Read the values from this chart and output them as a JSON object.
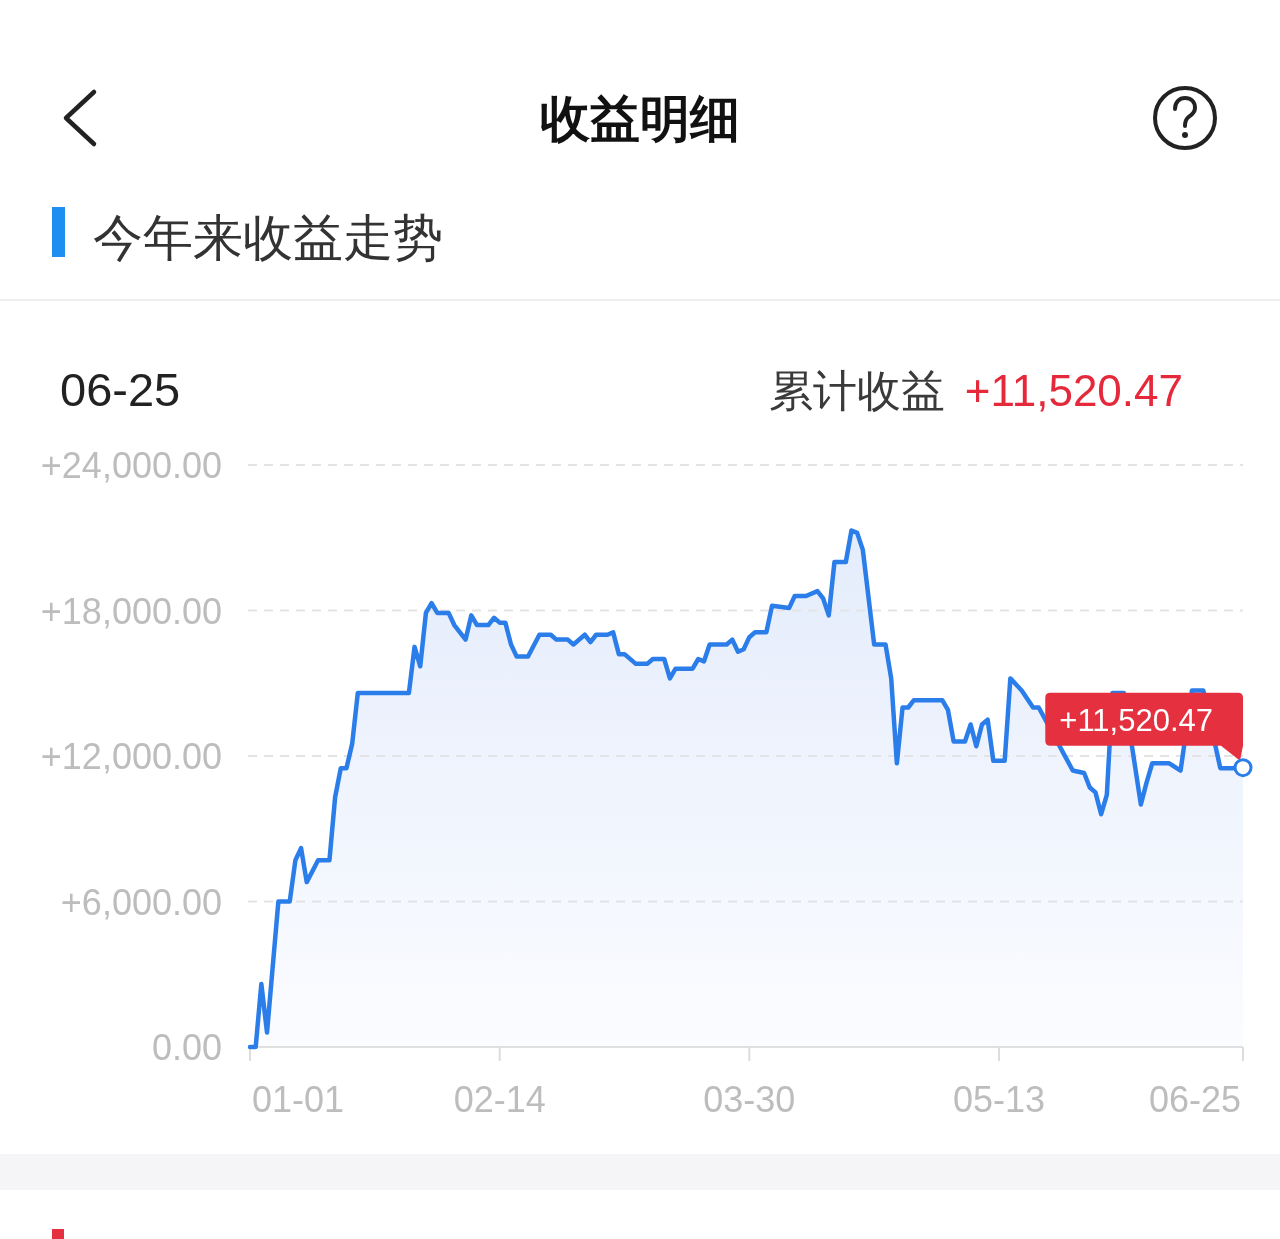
{
  "chart_data": {
    "type": "area",
    "title": "收益明细",
    "subtitle": "今年来收益走势",
    "annotations": [
      "06-25",
      "累计收益",
      "+11,520.47",
      {
        "text": "+11,520.47",
        "x": "--06-25",
        "y": 11520.47
      }
    ],
    "x": [
      "--01-01",
      "--01-02",
      "--01-03",
      "--01-04",
      "--01-06",
      "--01-08",
      "--01-09",
      "--01-10",
      "--01-11",
      "--01-13",
      "--01-15",
      "--01-16",
      "--01-17",
      "--01-18",
      "--01-19",
      "--01-20",
      "--01-29",
      "--01-30",
      "--01-31",
      "--02-01",
      "--02-02",
      "--02-03",
      "--02-05",
      "--02-06",
      "--02-07",
      "--02-08",
      "--02-09",
      "--02-10",
      "--02-12",
      "--02-13",
      "--02-14",
      "--02-15",
      "--02-16",
      "--02-17",
      "--02-19",
      "--02-21",
      "--02-23",
      "--02-24",
      "--02-26",
      "--02-27",
      "--03-01",
      "--03-02",
      "--03-03",
      "--03-05",
      "--03-06",
      "--03-07",
      "--03-08",
      "--03-10",
      "--03-12",
      "--03-13",
      "--03-15",
      "--03-16",
      "--03-17",
      "--03-20",
      "--03-21",
      "--03-22",
      "--03-23",
      "--03-26",
      "--03-27",
      "--03-28",
      "--03-29",
      "--03-30",
      "--03-31",
      "--04-02",
      "--04-03",
      "--04-06",
      "--04-07",
      "--04-09",
      "--04-11",
      "--04-12",
      "--04-13",
      "--04-14",
      "--04-16",
      "--04-17",
      "--04-18",
      "--04-19",
      "--04-21",
      "--04-23",
      "--04-24",
      "--04-25",
      "--04-26",
      "--04-27",
      "--04-28",
      "--05-03",
      "--05-04",
      "--05-05",
      "--05-07",
      "--05-08",
      "--05-09",
      "--05-10",
      "--05-11",
      "--05-12",
      "--05-14",
      "--05-15",
      "--05-17",
      "--05-19",
      "--05-20",
      "--05-26",
      "--05-28",
      "--05-29",
      "--05-30",
      "--05-31",
      "--06-01",
      "--06-02",
      "--06-04",
      "--06-07",
      "--06-08",
      "--06-09",
      "--06-12",
      "--06-14",
      "--06-16",
      "--06-18",
      "--06-21",
      "--06-23",
      "--06-25"
    ],
    "values": [
      0,
      0,
      2600,
      600,
      6000,
      6000,
      7700,
      8200,
      6800,
      7700,
      7700,
      10300,
      11500,
      11500,
      12500,
      14600,
      14600,
      16500,
      15700,
      17900,
      18300,
      17900,
      17900,
      17400,
      17100,
      16800,
      17800,
      17400,
      17400,
      17700,
      17500,
      17500,
      16600,
      16100,
      16100,
      17000,
      17000,
      16800,
      16800,
      16600,
      17000,
      16700,
      17000,
      17000,
      17100,
      16200,
      16200,
      15800,
      15800,
      16000,
      16000,
      15200,
      15600,
      15600,
      16000,
      15900,
      16600,
      16600,
      16800,
      16300,
      16400,
      16900,
      17100,
      17100,
      18200,
      18100,
      18600,
      18600,
      18800,
      18500,
      17800,
      20000,
      20000,
      21300,
      21200,
      20500,
      16600,
      16600,
      15200,
      11700,
      14000,
      14000,
      14300,
      14300,
      13900,
      12600,
      12600,
      13300,
      12400,
      13300,
      13500,
      11800,
      11800,
      15200,
      14700,
      14000,
      14000,
      11400,
      11300,
      10700,
      10500,
      9600,
      10400,
      14600,
      14600,
      10000,
      10900,
      11700,
      11700,
      11400,
      14700,
      14700,
      11500,
      11500,
      11520.47
    ],
    "color": "#2b7de9",
    "xlim": [
      "--01-01",
      "--06-25"
    ],
    "xticks": [
      {
        "value": "--01-01",
        "label": "01-01"
      },
      {
        "value": "--02-14",
        "label": "02-14"
      },
      {
        "value": "--03-30",
        "label": "03-30"
      },
      {
        "value": "--05-13",
        "label": "05-13"
      },
      {
        "value": "--06-25",
        "label": "06-25"
      }
    ],
    "ylim": [
      0,
      24000
    ],
    "yticks": [
      {
        "value": 0,
        "label": "0.00"
      },
      {
        "value": 6000,
        "label": "+6,000.00"
      },
      {
        "value": 12000,
        "label": "+12,000.00"
      },
      {
        "value": 18000,
        "label": "+18,000.00"
      },
      {
        "value": 24000,
        "label": "+24,000.00"
      }
    ],
    "grid": "y"
  }
}
